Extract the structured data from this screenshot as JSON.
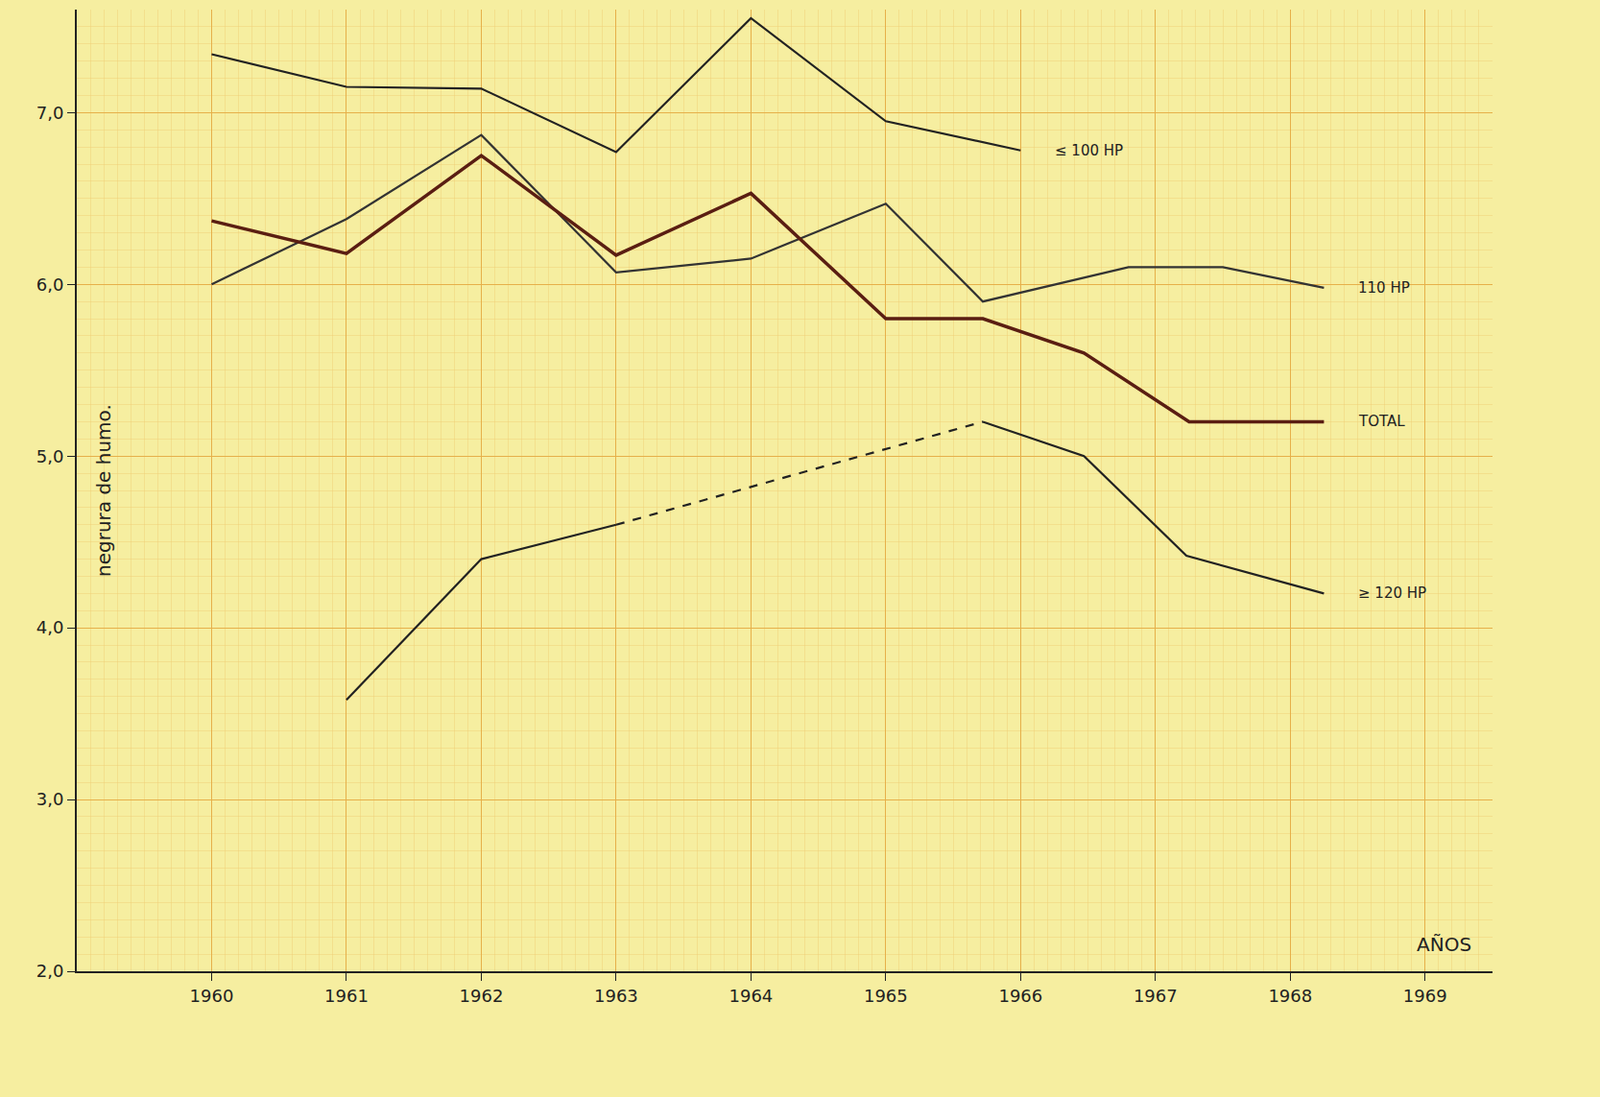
{
  "chart_data": {
    "type": "line",
    "x_label": "AÑOS",
    "y_label": "negrura de humo.",
    "xlim": [
      1959,
      1969.5
    ],
    "xticks": [
      1960,
      1961,
      1962,
      1963,
      1964,
      1965,
      1966,
      1967,
      1968,
      1969
    ],
    "ylim": [
      2,
      7.6
    ],
    "yticks": [
      {
        "value": 2,
        "label": "2,0"
      },
      {
        "value": 3,
        "label": "3,0"
      },
      {
        "value": 4,
        "label": "4,0"
      },
      {
        "value": 5,
        "label": "5,0"
      },
      {
        "value": 6,
        "label": "6,0"
      },
      {
        "value": 7,
        "label": "7,0"
      }
    ],
    "grid": true,
    "series": [
      {
        "name": "≤ 100 HP",
        "color": "#222222",
        "x": [
          1960,
          1961,
          1962,
          1963,
          1964,
          1965,
          1966
        ],
        "values": [
          7.34,
          7.15,
          7.14,
          6.77,
          7.55,
          6.95,
          6.78
        ]
      },
      {
        "name": "110 HP",
        "color": "#333333",
        "x": [
          1960,
          1961,
          1962,
          1963,
          1964,
          1965,
          1965.72,
          1966.8,
          1967.5,
          1968.25
        ],
        "values": [
          6.0,
          6.38,
          6.87,
          6.07,
          6.15,
          6.47,
          5.9,
          6.1,
          6.1,
          5.98
        ]
      },
      {
        "name": "TOTAL",
        "color": "#5a1e12",
        "x": [
          1960,
          1961,
          1962,
          1963,
          1964,
          1965,
          1965.72,
          1966.47,
          1967.25,
          1968.25
        ],
        "values": [
          6.37,
          6.18,
          6.75,
          6.17,
          6.53,
          5.8,
          5.8,
          5.6,
          5.2,
          5.2
        ]
      },
      {
        "name": "≥ 120 HP",
        "color": "#222222",
        "x": [
          1961,
          1962,
          1963,
          1964,
          1965.72,
          1966.47,
          1967.23,
          1968.25
        ],
        "values": [
          3.58,
          4.4,
          4.6,
          null,
          5.2,
          5.0,
          4.42,
          4.2
        ]
      },
      {
        "color": "#222222",
        "line_style": "dash",
        "x": [
          1963,
          1965.72
        ],
        "values": [
          4.6,
          5.2
        ]
      }
    ]
  }
}
